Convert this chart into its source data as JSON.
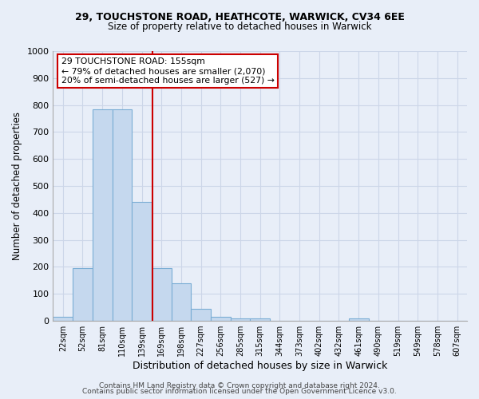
{
  "title1": "29, TOUCHSTONE ROAD, HEATHCOTE, WARWICK, CV34 6EE",
  "title2": "Size of property relative to detached houses in Warwick",
  "xlabel": "Distribution of detached houses by size in Warwick",
  "ylabel": "Number of detached properties",
  "categories": [
    "22sqm",
    "52sqm",
    "81sqm",
    "110sqm",
    "139sqm",
    "169sqm",
    "198sqm",
    "227sqm",
    "256sqm",
    "285sqm",
    "315sqm",
    "344sqm",
    "373sqm",
    "402sqm",
    "432sqm",
    "461sqm",
    "490sqm",
    "519sqm",
    "549sqm",
    "578sqm",
    "607sqm"
  ],
  "values": [
    15,
    195,
    785,
    785,
    440,
    195,
    140,
    45,
    15,
    10,
    10,
    0,
    0,
    0,
    0,
    8,
    0,
    0,
    0,
    0,
    0
  ],
  "bar_color": "#c5d8ee",
  "bar_edge_color": "#7aadd4",
  "vline_x": 4.55,
  "vline_color": "#cc0000",
  "annotation_text": "29 TOUCHSTONE ROAD: 155sqm\n← 79% of detached houses are smaller (2,070)\n20% of semi-detached houses are larger (527) →",
  "annotation_box_facecolor": "#ffffff",
  "annotation_box_edgecolor": "#cc0000",
  "ylim": [
    0,
    1000
  ],
  "yticks": [
    0,
    100,
    200,
    300,
    400,
    500,
    600,
    700,
    800,
    900,
    1000
  ],
  "grid_color": "#ccd6e8",
  "footer1": "Contains HM Land Registry data © Crown copyright and database right 2024.",
  "footer2": "Contains public sector information licensed under the Open Government Licence v3.0.",
  "fig_bg_color": "#e8eef8",
  "plot_bg_color": "#e8eef8"
}
